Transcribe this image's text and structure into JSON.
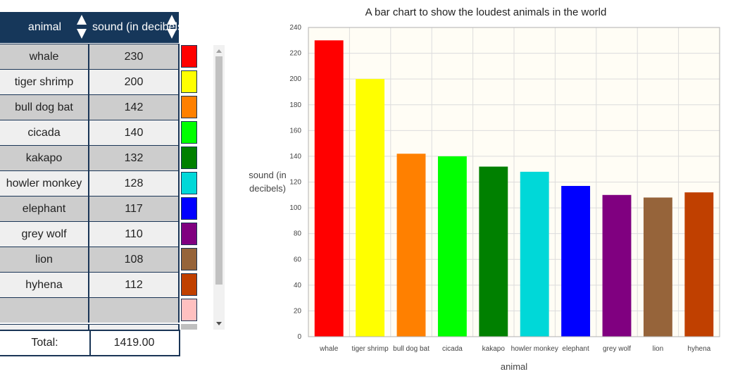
{
  "table": {
    "headers": {
      "animal": "animal",
      "sound": "sound (in decibels)"
    },
    "rows": [
      {
        "animal": "whale",
        "value": "230",
        "color": "#ff0000"
      },
      {
        "animal": "tiger shrimp",
        "value": "200",
        "color": "#ffff00"
      },
      {
        "animal": "bull dog bat",
        "value": "142",
        "color": "#ff8000"
      },
      {
        "animal": "cicada",
        "value": "140",
        "color": "#00ff00"
      },
      {
        "animal": "kakapo",
        "value": "132",
        "color": "#008000"
      },
      {
        "animal": "howler monkey",
        "value": "128",
        "color": "#00d8d8"
      },
      {
        "animal": "elephant",
        "value": "117",
        "color": "#0000ff"
      },
      {
        "animal": "grey wolf",
        "value": "110",
        "color": "#800080"
      },
      {
        "animal": "lion",
        "value": "108",
        "color": "#96643a"
      },
      {
        "animal": "hyhena",
        "value": "112",
        "color": "#c04000"
      },
      {
        "animal": "",
        "value": "",
        "color": "#ffc0c0"
      }
    ],
    "total_label": "Total:",
    "total_value": "1419.00"
  },
  "chart_data": {
    "type": "bar",
    "title": "A bar chart to show the loudest animals in the world",
    "xlabel": "animal",
    "ylabel_lines": [
      "sound (in",
      "decibels)"
    ],
    "categories": [
      "whale",
      "tiger shrimp",
      "bull dog bat",
      "cicada",
      "kakapo",
      "howler monkey",
      "elephant",
      "grey wolf",
      "lion",
      "hyhena"
    ],
    "values": [
      230,
      200,
      142,
      140,
      132,
      128,
      117,
      110,
      108,
      112
    ],
    "colors": [
      "#ff0000",
      "#ffff00",
      "#ff8000",
      "#00ff00",
      "#008000",
      "#00d8d8",
      "#0000ff",
      "#800080",
      "#96643a",
      "#c04000"
    ],
    "ylim": [
      0,
      240
    ],
    "yticks": [
      0,
      20,
      40,
      60,
      80,
      100,
      120,
      140,
      160,
      180,
      200,
      220,
      240
    ],
    "grid": true,
    "background": "#fffdf5"
  }
}
